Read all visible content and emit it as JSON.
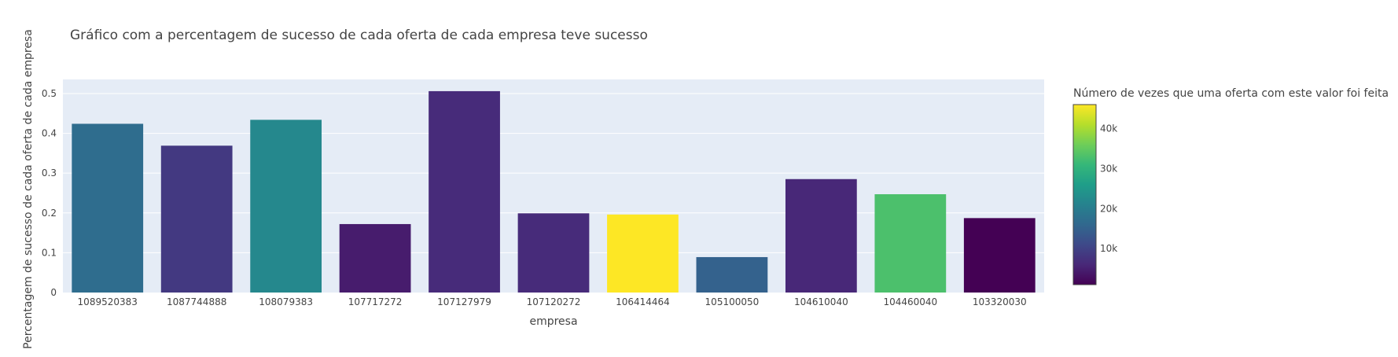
{
  "chart_data": {
    "type": "bar",
    "title": "Gráfico com a percentagem de sucesso de cada oferta de cada empresa teve sucesso",
    "xlabel": "empresa",
    "ylabel": "Percentagem de sucesso de cada oferta de cada empresa",
    "categories": [
      "1089520383",
      "1087744888",
      "108079383",
      "107717272",
      "107127979",
      "107120272",
      "106414464",
      "105100050",
      "104610040",
      "104460040",
      "103320030"
    ],
    "values": [
      0.424,
      0.369,
      0.434,
      0.172,
      0.506,
      0.199,
      0.196,
      0.089,
      0.285,
      0.247,
      0.187
    ],
    "color_values": [
      17000,
      8500,
      22000,
      4500,
      6500,
      6500,
      46000,
      15000,
      6000,
      33000,
      1000
    ],
    "ylim": [
      0,
      0.5355
    ],
    "yticks": [
      0,
      0.1,
      0.2,
      0.3,
      0.4,
      0.5
    ],
    "ytick_labels": [
      "0",
      "0.1",
      "0.2",
      "0.3",
      "0.4",
      "0.5"
    ],
    "grid": true,
    "colorbar": {
      "title": "Número de vezes que uma oferta com este valor foi feita",
      "colorscale": "Viridis",
      "range": [
        1000,
        46000
      ],
      "ticks": [
        10000,
        20000,
        30000,
        40000
      ],
      "tick_labels": [
        "10k",
        "20k",
        "30k",
        "40k"
      ]
    },
    "colors": {
      "plot_background": "#e5ecf6",
      "gridline": "#ffffff",
      "text": "#444444"
    }
  }
}
